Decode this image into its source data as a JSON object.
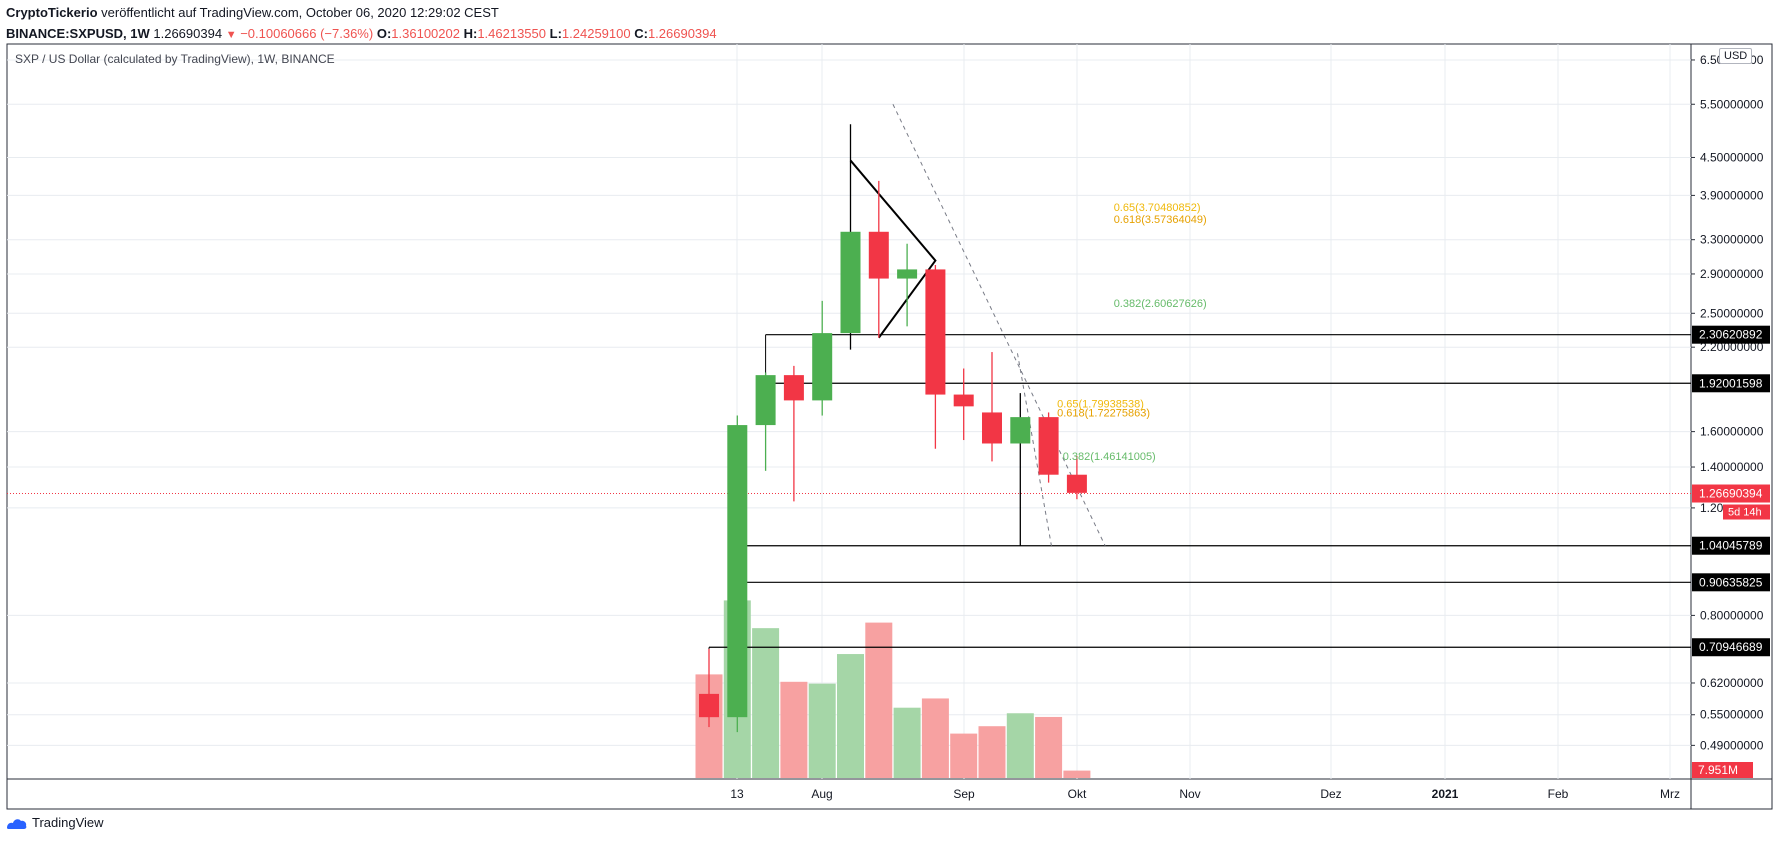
{
  "header": {
    "publisher": "CryptoTickerio",
    "published_text": "veröffentlicht auf TradingView.com, October 06, 2020 12:29:02 CEST",
    "symbol": "BINANCE:SXPUSD, 1W",
    "price": "1.26690394",
    "change": "−0.10060666 (−7.36%)",
    "o_label": "O:",
    "o_value": "1.36100202",
    "h_label": "H:",
    "h_value": "1.46213550",
    "l_label": "L:",
    "l_value": "1.24259100",
    "c_label": "C:",
    "c_value": "1.26690394"
  },
  "chart_title": "SXP / US Dollar (calculated by TradingView), 1W, BINANCE",
  "currency_badge": "USD",
  "footer": {
    "brand": "TradingView"
  },
  "colors": {
    "up": "#4caf50",
    "down": "#f23645",
    "fib_gold": "#f0b90b",
    "fib_green": "#66bb6a",
    "grid": "#e8ecf0"
  },
  "chart_data": {
    "type": "candlestick",
    "scale": "log",
    "timeframe": "1W",
    "x_labels": [
      "13",
      "Aug",
      "Sep",
      "Okt",
      "Nov",
      "Dez",
      "2021",
      "Feb",
      "Mrz"
    ],
    "y_ticks": [
      "6.50000000",
      "5.50000000",
      "4.50000000",
      "3.90000000",
      "3.30000000",
      "2.90000000",
      "2.50000000",
      "2.20000000",
      "1.60000000",
      "1.40000000",
      "1.20",
      "0.80000000",
      "0.62000000",
      "0.55000000",
      "0.49000000"
    ],
    "ylim": [
      0.43,
      6.8
    ],
    "candles": [
      {
        "x": 0,
        "o": 0.595,
        "h": 0.705,
        "l": 0.525,
        "c": 0.545
      },
      {
        "x": 1,
        "o": 0.545,
        "h": 1.7,
        "l": 0.515,
        "c": 1.64
      },
      {
        "x": 2,
        "o": 1.64,
        "h": 2.0,
        "l": 1.38,
        "c": 1.98
      },
      {
        "x": 3,
        "o": 1.98,
        "h": 2.05,
        "l": 1.23,
        "c": 1.8
      },
      {
        "x": 4,
        "o": 1.8,
        "h": 2.62,
        "l": 1.7,
        "c": 2.32
      },
      {
        "x": 5,
        "o": 2.32,
        "h": 5.1,
        "l": 2.18,
        "c": 3.4
      },
      {
        "x": 6,
        "o": 3.4,
        "h": 4.12,
        "l": 2.28,
        "c": 2.85
      },
      {
        "x": 7,
        "o": 2.85,
        "h": 3.25,
        "l": 2.38,
        "c": 2.95
      },
      {
        "x": 8,
        "o": 2.95,
        "h": 3.0,
        "l": 1.5,
        "c": 1.84
      },
      {
        "x": 9,
        "o": 1.84,
        "h": 2.03,
        "l": 1.55,
        "c": 1.76
      },
      {
        "x": 10,
        "o": 1.72,
        "h": 2.16,
        "l": 1.43,
        "c": 1.53
      },
      {
        "x": 11,
        "o": 1.53,
        "h": 1.85,
        "l": 1.04,
        "c": 1.69
      },
      {
        "x": 12,
        "o": 1.69,
        "h": 1.72,
        "l": 1.32,
        "c": 1.36
      },
      {
        "x": 13,
        "o": 1.36,
        "h": 1.46,
        "l": 1.24,
        "c": 1.27
      }
    ],
    "volume": {
      "label": "7.951M",
      "values": [
        0.56,
        0.96,
        0.81,
        0.52,
        0.51,
        0.67,
        0.84,
        0.38,
        0.43,
        0.24,
        0.28,
        0.35,
        0.33,
        0.04
      ],
      "up": [
        false,
        true,
        true,
        false,
        true,
        true,
        false,
        true,
        false,
        false,
        false,
        true,
        false,
        false
      ]
    },
    "horizontal_levels": [
      {
        "value": 2.30620892,
        "label": "2.30620892",
        "start_x": 2
      },
      {
        "value": 1.92001598,
        "label": "1.92001598",
        "start_x": 2
      },
      {
        "value": 1.04045789,
        "label": "1.04045789",
        "start_x": 1
      },
      {
        "value": 0.90635825,
        "label": "0.90635825",
        "start_x": 1
      },
      {
        "value": 0.70946689,
        "label": "0.70946689",
        "start_x": 0
      }
    ],
    "current_price_label": "1.26690394",
    "countdown_label": "5d 14h",
    "fib_labels": [
      {
        "text": "0.65(3.70480852)",
        "x": 14.3,
        "y": 3.73,
        "color": "#f0b90b"
      },
      {
        "text": "0.618(3.57364049)",
        "x": 14.3,
        "y": 3.57,
        "color": "#e6a100"
      },
      {
        "text": "0.382(2.60627626)",
        "x": 14.3,
        "y": 2.6,
        "color": "#66bb6a"
      },
      {
        "text": "0.65(1.79938538)",
        "x": 12.3,
        "y": 1.78,
        "color": "#f0b90b"
      },
      {
        "text": "0.618(1.72275863)",
        "x": 12.3,
        "y": 1.72,
        "color": "#e6a100"
      },
      {
        "text": "0.382(1.46141005)",
        "x": 12.5,
        "y": 1.46,
        "color": "#66bb6a"
      }
    ]
  }
}
